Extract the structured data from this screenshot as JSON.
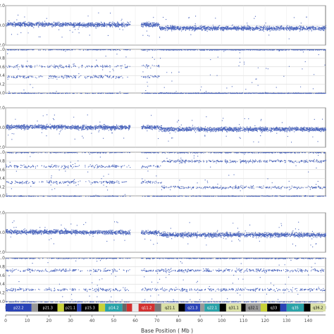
{
  "chart_data": {
    "type": "scatter",
    "xlabel": "Base Position ( Mb )",
    "xlim": [
      0,
      148
    ],
    "x_ticks": [
      "0",
      "10",
      "20",
      "30",
      "40",
      "50",
      "60",
      "70",
      "80",
      "90",
      "100",
      "110",
      "120",
      "130",
      "140"
    ],
    "marker_color": "#2f4db3",
    "samples": [
      {
        "lrr_ylim": [
          -2,
          2
        ],
        "lrr_tick_labels": [
          "2.0",
          "0.0",
          "-2.0"
        ],
        "lrr_level_p": 0.1,
        "lrr_level_q": -0.25,
        "cn_change_mb": 71,
        "baf_ylim": [
          0,
          1
        ],
        "baf_tick_labels": [
          "1.0",
          "0.8",
          "0.6",
          "0.4",
          "0.2",
          "0.0"
        ],
        "baf_p_bands": [
          0.0,
          0.38,
          0.62,
          1.0
        ],
        "baf_q_bands": [
          0.0,
          1.0
        ]
      },
      {
        "lrr_ylim": [
          -2,
          2
        ],
        "lrr_tick_labels": [
          "2.0",
          "0.0",
          "-2.0"
        ],
        "lrr_level_p": 0.05,
        "lrr_level_q": -0.15,
        "cn_change_mb": 72,
        "baf_ylim": [
          0,
          1
        ],
        "baf_tick_labels": [
          "1.0",
          "0.8",
          "0.6",
          "0.4",
          "0.2",
          "0.0"
        ],
        "baf_p_bands": [
          0.0,
          0.32,
          0.68,
          1.0
        ],
        "baf_q_bands": [
          0.0,
          0.2,
          0.8,
          1.0
        ]
      },
      {
        "lrr_ylim": [
          -2,
          2
        ],
        "lrr_tick_labels": [
          "2.0",
          "0.0",
          "-2.0"
        ],
        "lrr_level_p": 0.05,
        "lrr_level_q": -0.2,
        "cn_change_mb": 71,
        "baf_ylim": [
          0,
          1
        ],
        "baf_tick_labels": [
          "1.0",
          "0.8",
          "0.6",
          "0.4",
          "0.2",
          "0.0"
        ],
        "baf_p_bands": [
          0.0,
          0.28,
          0.72,
          1.0
        ],
        "baf_q_bands": [
          0.0,
          0.28,
          0.72,
          1.0
        ]
      }
    ],
    "centromere_gap_mb": [
      57.5,
      62.5
    ],
    "ideogram_bands": [
      {
        "label": "p22.2",
        "start": 0,
        "end": 12,
        "color": "#2a43b5",
        "text_color": "#ffffff"
      },
      {
        "label": "",
        "start": 12,
        "end": 15,
        "color": "#999999",
        "text_color": "#000000"
      },
      {
        "label": "p21.3",
        "start": 15,
        "end": 24,
        "color": "#000000",
        "text_color": "#ffffff"
      },
      {
        "label": "",
        "start": 24,
        "end": 27,
        "color": "#c8d23a",
        "text_color": "#000000"
      },
      {
        "label": "p21.1",
        "start": 27,
        "end": 33,
        "color": "#000000",
        "text_color": "#ffffff"
      },
      {
        "label": "",
        "start": 33,
        "end": 35,
        "color": "#2a43b5",
        "text_color": "#ffffff"
      },
      {
        "label": "p15.3",
        "start": 35,
        "end": 43,
        "color": "#000000",
        "text_color": "#ffffff"
      },
      {
        "label": "",
        "start": 43,
        "end": 46,
        "color": "#c8d23a",
        "text_color": "#000000"
      },
      {
        "label": "p14.2",
        "start": 46,
        "end": 54,
        "color": "#2aa2a8",
        "text_color": "#ffffff"
      },
      {
        "label": "",
        "start": 54,
        "end": 56,
        "color": "#666666",
        "text_color": "#ffffff"
      },
      {
        "label": "",
        "start": 56,
        "end": 58.5,
        "color": "#d23030",
        "text_color": "#ffffff"
      },
      {
        "label": "",
        "start": 58.5,
        "end": 61.5,
        "color": "#e8e8e8",
        "text_color": "#000000"
      },
      {
        "label": "q11.2",
        "start": 61.5,
        "end": 69,
        "color": "#d23030",
        "text_color": "#ffffff"
      },
      {
        "label": "",
        "start": 69,
        "end": 72,
        "color": "#777777",
        "text_color": "#ffffff"
      },
      {
        "label": "q21.1",
        "start": 72,
        "end": 80,
        "color": "#d9dfa6",
        "text_color": "#000000"
      },
      {
        "label": "",
        "start": 80,
        "end": 83,
        "color": "#000000",
        "text_color": "#ffffff"
      },
      {
        "label": "q21.3",
        "start": 83,
        "end": 90,
        "color": "#2a43b5",
        "text_color": "#ffffff"
      },
      {
        "label": "",
        "start": 90,
        "end": 92,
        "color": "#999999",
        "text_color": "#000000"
      },
      {
        "label": "q22.1",
        "start": 92,
        "end": 99,
        "color": "#2aa2a8",
        "text_color": "#ffffff"
      },
      {
        "label": "",
        "start": 99,
        "end": 102,
        "color": "#000000",
        "text_color": "#ffffff"
      },
      {
        "label": "q31.1",
        "start": 102,
        "end": 109,
        "color": "#d9dfa6",
        "text_color": "#000000"
      },
      {
        "label": "",
        "start": 109,
        "end": 111,
        "color": "#000000",
        "text_color": "#ffffff"
      },
      {
        "label": "q32.1",
        "start": 111,
        "end": 118,
        "color": "#999999",
        "text_color": "#000000"
      },
      {
        "label": "",
        "start": 118,
        "end": 121,
        "color": "#c8d23a",
        "text_color": "#000000"
      },
      {
        "label": "q33",
        "start": 121,
        "end": 127,
        "color": "#000000",
        "text_color": "#ffffff"
      },
      {
        "label": "",
        "start": 127,
        "end": 130,
        "color": "#2a43b5",
        "text_color": "#ffffff"
      },
      {
        "label": "q35",
        "start": 130,
        "end": 138,
        "color": "#2aa2a8",
        "text_color": "#ffffff"
      },
      {
        "label": "",
        "start": 138,
        "end": 141,
        "color": "#000000",
        "text_color": "#ffffff"
      },
      {
        "label": "q36.2",
        "start": 141,
        "end": 148,
        "color": "#d9dfa6",
        "text_color": "#000000"
      }
    ]
  }
}
